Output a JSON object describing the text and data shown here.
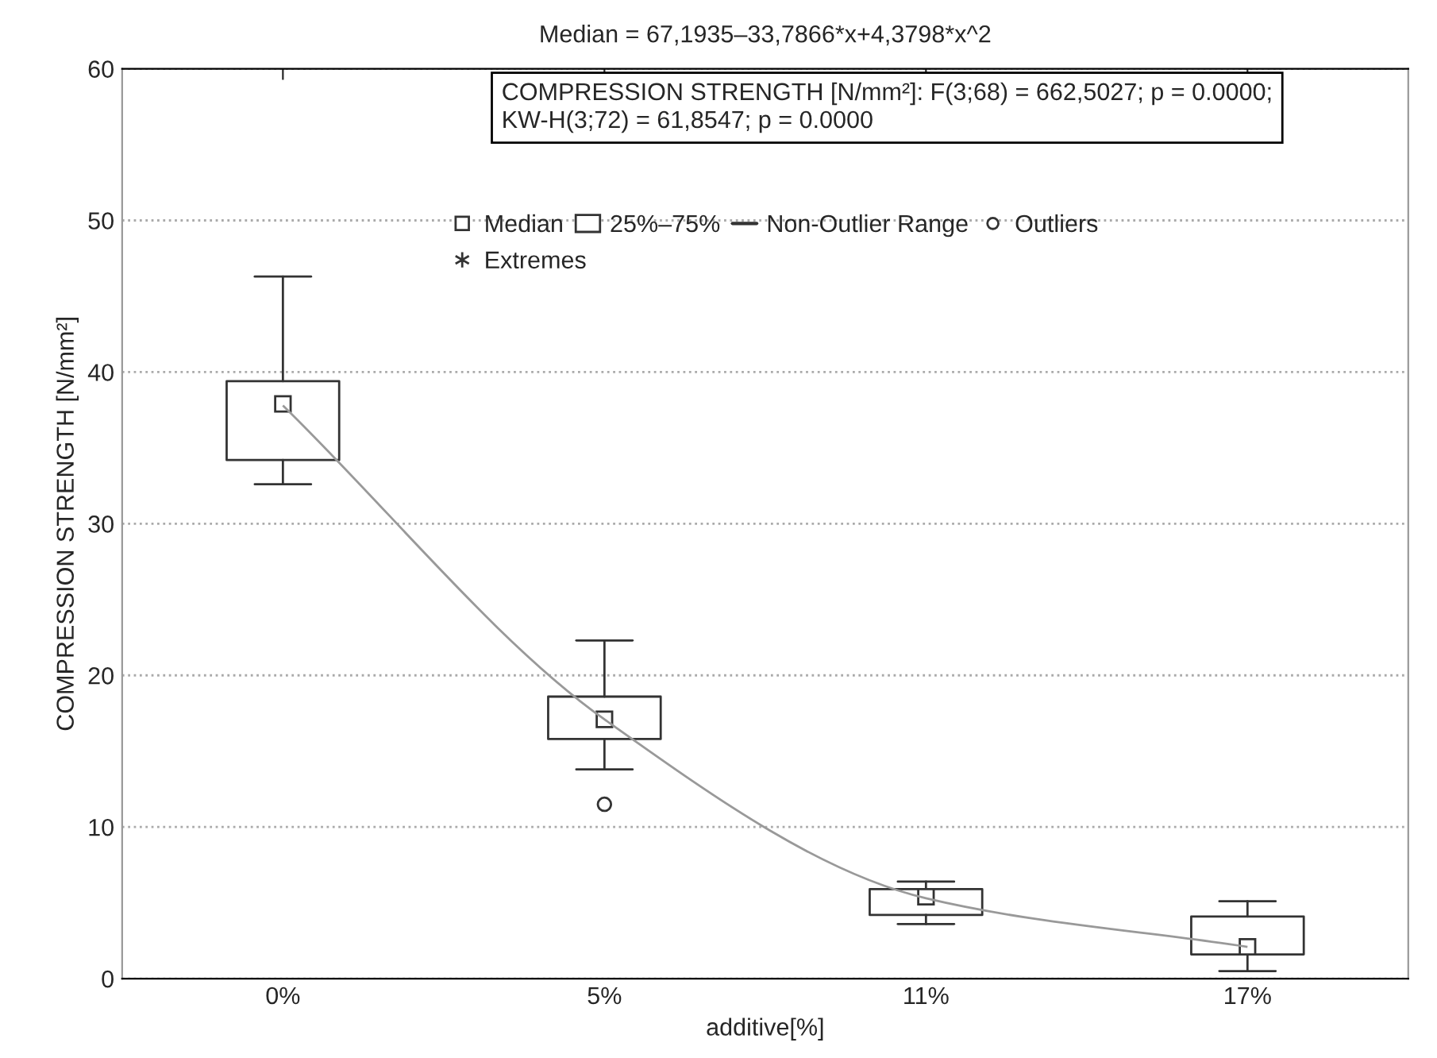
{
  "chart_data": {
    "type": "box",
    "title": "Median = 67,1935–33,7866*x+4,3798*x^2",
    "xlabel": "additive[%]",
    "ylabel": "COMPRESSION STRENGTH [N/mm²]",
    "categories": [
      "0%",
      "5%",
      "11%",
      "17%"
    ],
    "ylim": [
      0,
      60
    ],
    "yticks": [
      0,
      10,
      20,
      30,
      40,
      50,
      60
    ],
    "grid": "y",
    "color": "#333333",
    "boxes": [
      {
        "low": 32.6,
        "q1": 34.2,
        "median": 37.9,
        "q3": 39.4,
        "high": 46.3
      },
      {
        "low": 13.8,
        "q1": 15.8,
        "median": 17.1,
        "q3": 18.6,
        "high": 22.3,
        "outliers": [
          11.5
        ]
      },
      {
        "low": 3.6,
        "q1": 4.2,
        "median": 5.4,
        "q3": 5.9,
        "high": 6.4
      },
      {
        "low": 0.5,
        "q1": 1.6,
        "median": 2.1,
        "q3": 4.1,
        "high": 5.1
      }
    ],
    "series": [
      {
        "type": "line",
        "color": "#999999",
        "values": [
          37.8,
          17.1,
          5.3,
          2.1
        ]
      }
    ],
    "annotations": [
      "COMPRESSION STRENGTH [N/mm²]: F(3;68) = 662,5027; p = 0.0000;\nKW-H(3;72) = 61,8547; p = 0.0000",
      "Median",
      "25%–75%",
      "Non-Outlier Range",
      "Outliers",
      "Extremes"
    ]
  }
}
